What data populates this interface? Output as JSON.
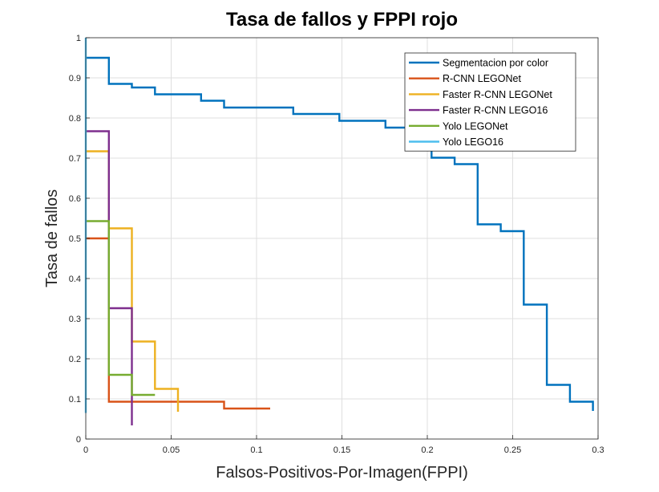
{
  "chart_data": {
    "type": "line",
    "step": true,
    "title": "Tasa de fallos y FPPI rojo",
    "xlabel": "Falsos-Positivos-Por-Imagen(FPPI)",
    "ylabel": "Tasa de fallos",
    "xlim": [
      0,
      0.3
    ],
    "ylim": [
      0,
      1
    ],
    "xticks": [
      "0",
      "0.05",
      "0.1",
      "0.15",
      "0.2",
      "0.25",
      "0.3"
    ],
    "yticks": [
      "0",
      "0.1",
      "0.2",
      "0.3",
      "0.4",
      "0.5",
      "0.6",
      "0.7",
      "0.8",
      "0.9",
      "1"
    ],
    "grid": true,
    "legend_position": "top-right",
    "series": [
      {
        "name": "Segmentacion por color",
        "color": "#0072BD",
        "x": [
          0,
          0.0135,
          0.0135,
          0.027,
          0.027,
          0.0405,
          0.0405,
          0.0675,
          0.0675,
          0.081,
          0.081,
          0.1215,
          0.1215,
          0.1485,
          0.1485,
          0.1755,
          0.1755,
          0.189,
          0.189,
          0.2025,
          0.2025,
          0.216,
          0.216,
          0.2295,
          0.2295,
          0.243,
          0.243,
          0.2565,
          0.2565,
          0.27,
          0.27,
          0.2835,
          0.2835,
          0.297,
          0.297
        ],
        "y": [
          0.95,
          0.95,
          0.885,
          0.885,
          0.876,
          0.876,
          0.859,
          0.859,
          0.843,
          0.843,
          0.826,
          0.826,
          0.81,
          0.81,
          0.793,
          0.793,
          0.776,
          0.776,
          0.72,
          0.72,
          0.701,
          0.701,
          0.685,
          0.685,
          0.535,
          0.535,
          0.518,
          0.518,
          0.335,
          0.335,
          0.135,
          0.135,
          0.093,
          0.093,
          0.07
        ]
      },
      {
        "name": "R-CNN LEGONet",
        "color": "#D95319",
        "x": [
          0,
          0.0135,
          0.0135,
          0.081,
          0.081,
          0.108
        ],
        "y": [
          0.5,
          0.5,
          0.093,
          0.093,
          0.076,
          0.076
        ]
      },
      {
        "name": "Faster R-CNN LEGONet",
        "color": "#EDB120",
        "x": [
          0,
          0.0135,
          0.0135,
          0.027,
          0.027,
          0.0405,
          0.0405,
          0.054,
          0.054
        ],
        "y": [
          0.717,
          0.717,
          0.525,
          0.525,
          0.243,
          0.243,
          0.125,
          0.125,
          0.068
        ]
      },
      {
        "name": "Faster R-CNN LEGO16",
        "color": "#7E2F8E",
        "x": [
          0,
          0.0135,
          0.0135,
          0.027,
          0.027
        ],
        "y": [
          0.767,
          0.767,
          0.326,
          0.326,
          0.034
        ]
      },
      {
        "name": "Yolo LEGONet",
        "color": "#77AC30",
        "x": [
          0,
          0.0135,
          0.0135,
          0.027,
          0.027,
          0.0405
        ],
        "y": [
          0.543,
          0.543,
          0.16,
          0.16,
          0.11,
          0.11
        ]
      },
      {
        "name": "Yolo LEGO16",
        "color": "#4DBEEE",
        "x": [
          0,
          0
        ],
        "y": [
          1.0,
          0.065
        ]
      }
    ]
  }
}
